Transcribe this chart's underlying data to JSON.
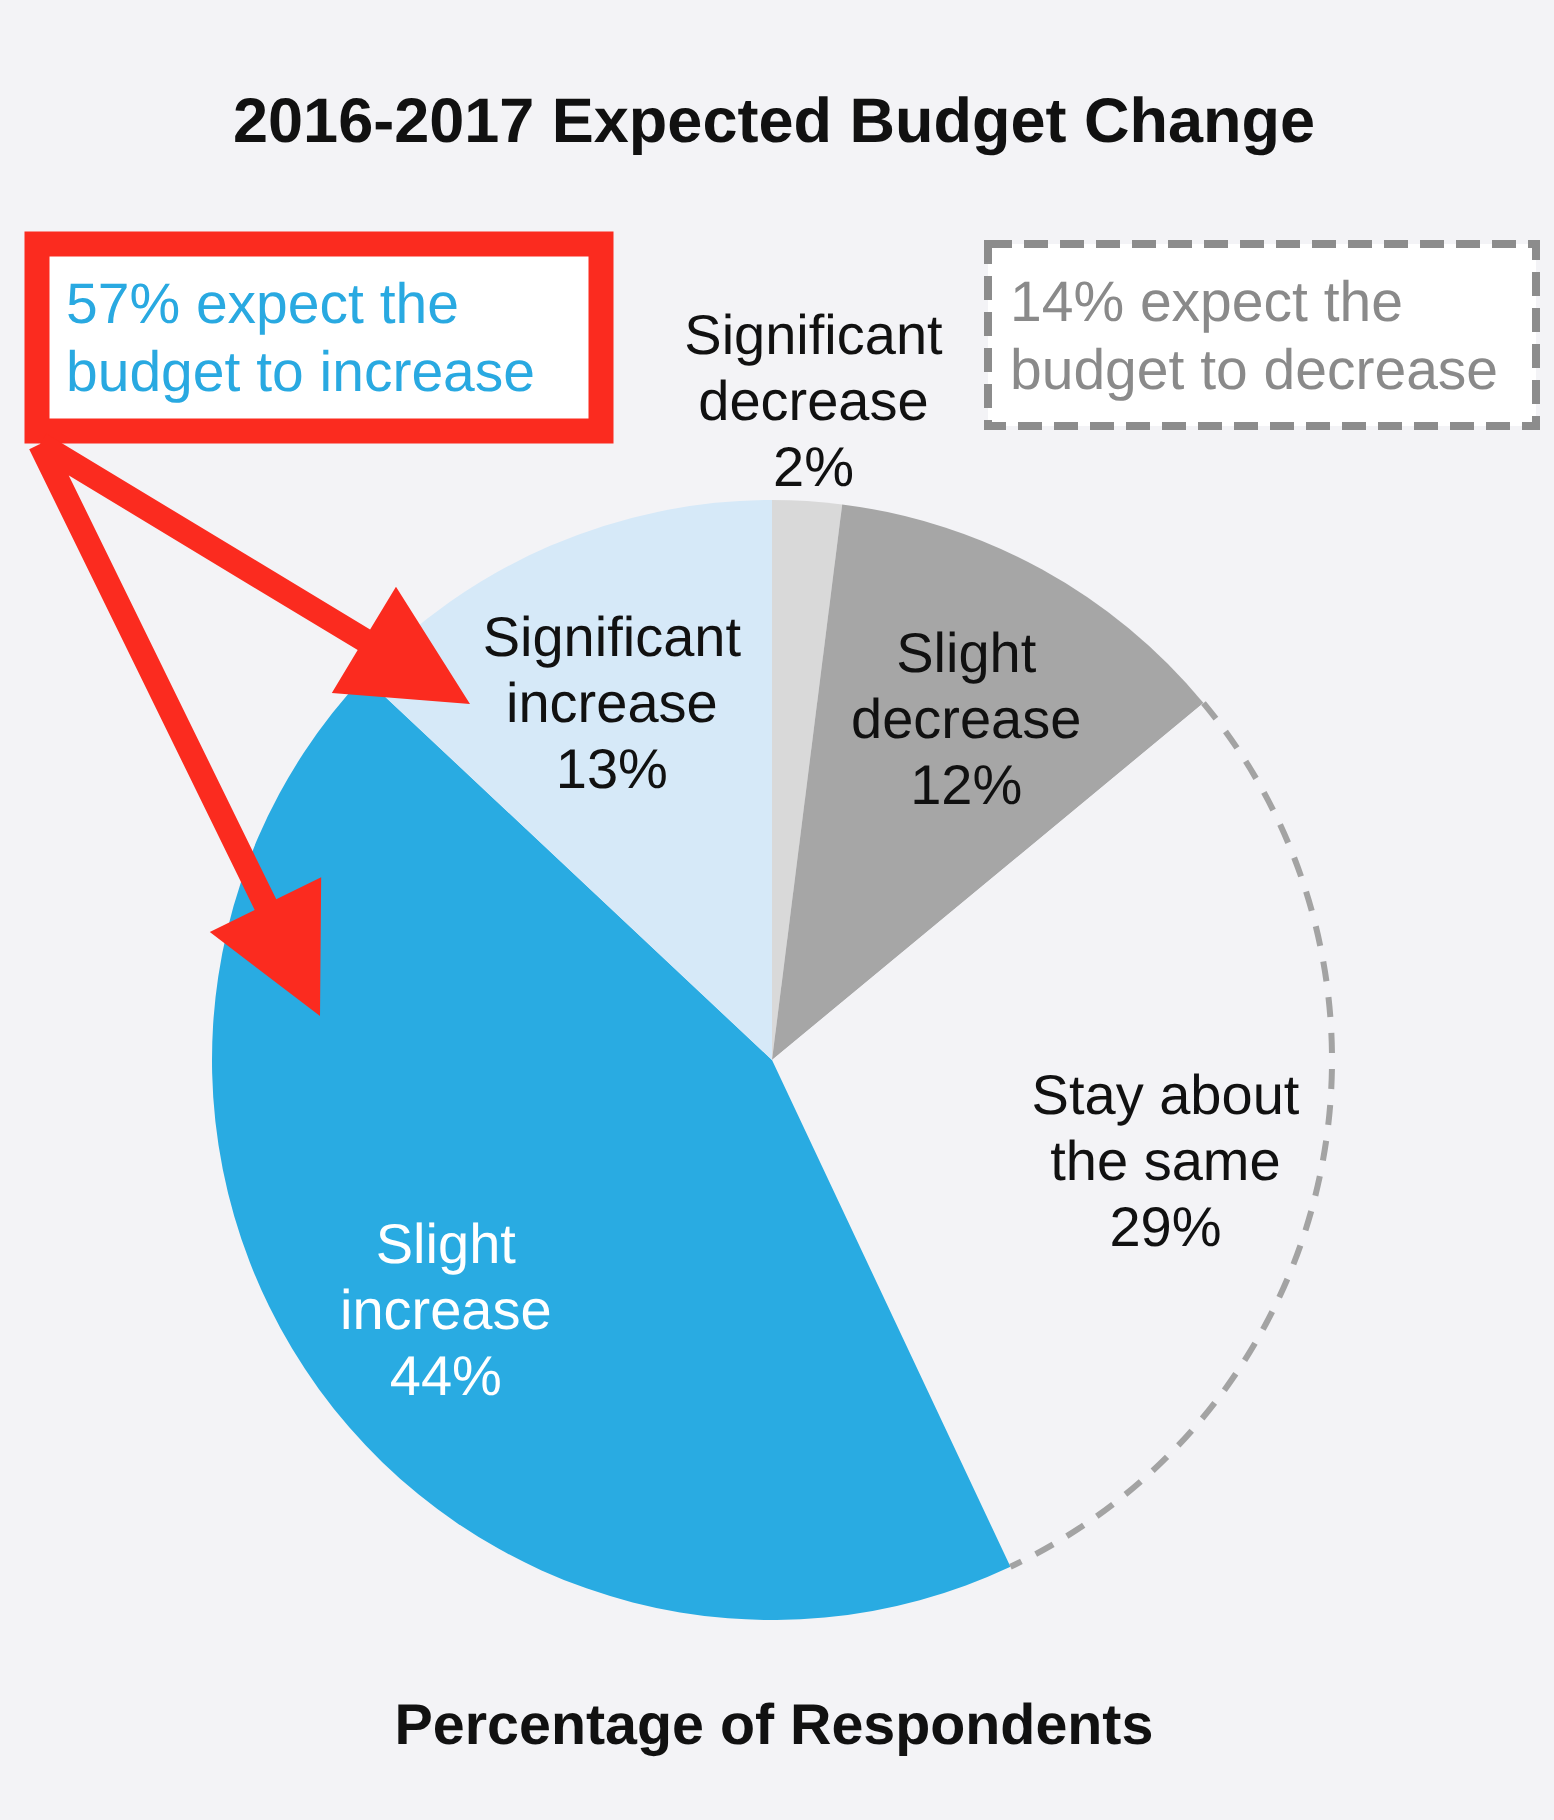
{
  "chart_data": {
    "type": "pie",
    "title": "2016-2017 Expected Budget Change",
    "xlabel": "Percentage of Respondents",
    "categories": [
      "Significant decrease",
      "Slight decrease",
      "Stay about the same",
      "Slight increase",
      "Significant increase"
    ],
    "values": [
      2,
      12,
      29,
      44,
      13
    ],
    "colors": [
      "#d9d9d9",
      "#a6a6a6",
      "#f3f3f6",
      "#29abe2",
      "#d6e9f8"
    ],
    "value_labels": [
      "2%",
      "12%",
      "29%",
      "44%",
      "13%"
    ],
    "annotations": [
      "57% expect the budget to increase",
      "14% expect the budget to decrease"
    ]
  }
}
